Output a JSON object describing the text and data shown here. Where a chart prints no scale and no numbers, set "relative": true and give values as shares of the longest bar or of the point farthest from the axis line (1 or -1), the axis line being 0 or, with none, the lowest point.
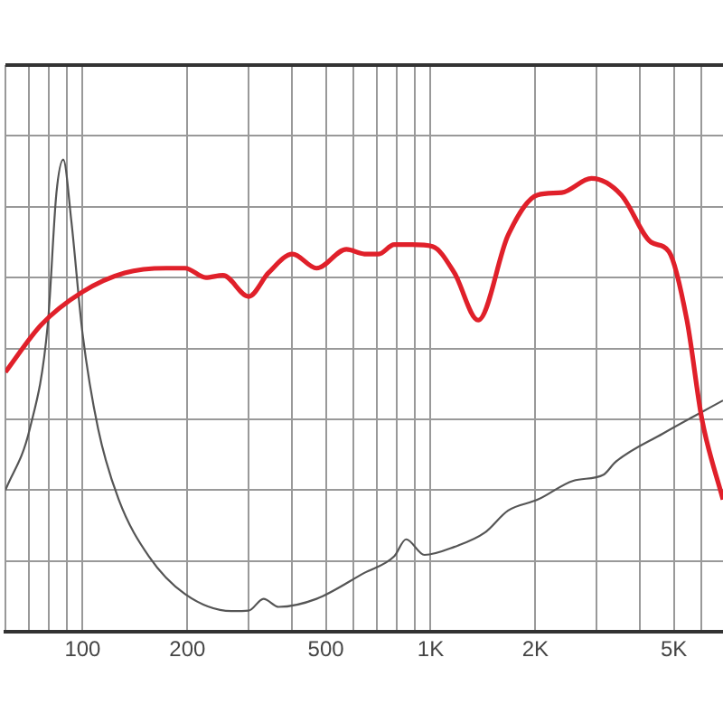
{
  "chart_data": {
    "type": "line",
    "relative": true,
    "log": "x",
    "grid": true,
    "legend": false,
    "marker": "none",
    "line_style": "solid",
    "tick_labels": "x",
    "xlim": [
      60,
      6920
    ],
    "xticks": [
      {
        "value": 60,
        "label": null
      },
      {
        "value": 70,
        "label": null
      },
      {
        "value": 80,
        "label": null
      },
      {
        "value": 90,
        "label": null
      },
      100,
      200,
      {
        "value": 300,
        "label": null
      },
      {
        "value": 400,
        "label": null
      },
      500,
      {
        "value": 600,
        "label": null
      },
      {
        "value": 700,
        "label": null
      },
      {
        "value": 800,
        "label": null
      },
      {
        "value": 900,
        "label": null
      },
      {
        "value": 1000,
        "label": "1K"
      },
      {
        "value": 2000,
        "label": "2K"
      },
      {
        "value": 3000,
        "label": null
      },
      {
        "value": 4000,
        "label": null
      },
      {
        "value": 5000,
        "label": "5K"
      },
      {
        "value": 6000,
        "label": null
      }
    ],
    "series": [
      {
        "color": "#e0202a",
        "x": [
          60,
          76,
          100,
          132,
          174,
          197,
          226,
          253,
          300,
          342,
          401,
          470,
          573,
          645,
          709,
          786,
          885,
          1013,
          1170,
          1370,
          1670,
          2030,
          2380,
          2900,
          3530,
          4300,
          4840,
          5450,
          6020,
          6920
        ],
        "values": [
          0.55,
          0.65,
          0.72,
          0.76,
          0.77,
          0.77,
          0.75,
          0.755,
          0.71,
          0.76,
          0.8,
          0.77,
          0.81,
          0.8,
          0.8,
          0.82,
          0.82,
          0.816,
          0.76,
          0.66,
          0.84,
          0.925,
          0.93,
          0.96,
          0.925,
          0.825,
          0.805,
          0.66,
          0.45,
          0.28
        ]
      },
      {
        "color": "#555555",
        "x": [
          60,
          70.5,
          79.4,
          84.1,
          88,
          92.8,
          100,
          110.8,
          127,
          155,
          197,
          269,
          300,
          331,
          366,
          470,
          645,
          786,
          850,
          960,
          1170,
          1430,
          1670,
          2030,
          2570,
          3140,
          3400,
          4650,
          6920
        ],
        "values": [
          0.3,
          0.43,
          0.65,
          0.93,
          1,
          0.87,
          0.63,
          0.43,
          0.28,
          0.16,
          0.08,
          0.044,
          0.045,
          0.07,
          0.053,
          0.07,
          0.125,
          0.16,
          0.196,
          0.163,
          0.18,
          0.21,
          0.257,
          0.28,
          0.32,
          0.333,
          0.36,
          0.42,
          0.49
        ]
      }
    ]
  }
}
